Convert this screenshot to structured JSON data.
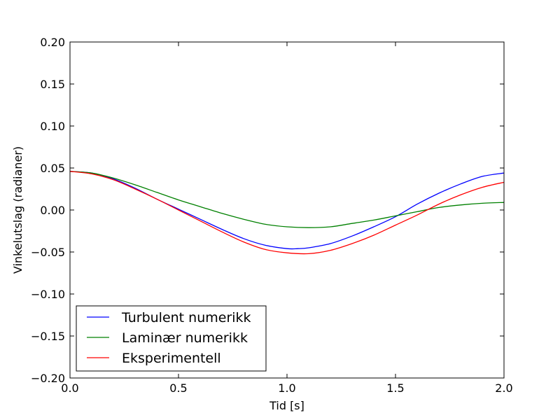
{
  "chart_data": {
    "type": "line",
    "title": "",
    "xlabel": "Tid [s]",
    "ylabel": "Vinkelutslag (radianer)",
    "xlim": [
      0.0,
      2.0
    ],
    "ylim": [
      -0.2,
      0.2
    ],
    "xticks": [
      0.0,
      0.5,
      1.0,
      1.5,
      2.0
    ],
    "xtick_labels": [
      "0.0",
      "0.5",
      "1.0",
      "1.5",
      "2.0"
    ],
    "yticks": [
      0.2,
      0.15,
      0.1,
      0.05,
      0.0,
      -0.05,
      -0.1,
      -0.15,
      -0.2
    ],
    "ytick_labels": [
      "0.20",
      "0.15",
      "0.10",
      "0.05",
      "0.00",
      "−0.05",
      "−0.10",
      "−0.15",
      "−0.20"
    ],
    "grid": false,
    "legend_position": "lower-left",
    "series": [
      {
        "name": "Turbulent numerikk",
        "color": "#0000ff",
        "x": [
          0.0,
          0.1,
          0.2,
          0.3,
          0.4,
          0.5,
          0.6,
          0.7,
          0.8,
          0.9,
          1.0,
          1.05,
          1.1,
          1.2,
          1.3,
          1.4,
          1.5,
          1.6,
          1.7,
          1.8,
          1.9,
          2.0
        ],
        "y": [
          0.046,
          0.044,
          0.037,
          0.026,
          0.013,
          0.001,
          -0.011,
          -0.023,
          -0.034,
          -0.042,
          -0.046,
          -0.046,
          -0.045,
          -0.04,
          -0.031,
          -0.02,
          -0.008,
          0.007,
          0.02,
          0.031,
          0.04,
          0.044
        ]
      },
      {
        "name": "Laminær numerikk",
        "color": "#008000",
        "x": [
          0.0,
          0.1,
          0.2,
          0.3,
          0.4,
          0.5,
          0.6,
          0.7,
          0.8,
          0.9,
          1.0,
          1.1,
          1.2,
          1.3,
          1.4,
          1.5,
          1.6,
          1.7,
          1.8,
          1.9,
          2.0
        ],
        "y": [
          0.046,
          0.044,
          0.038,
          0.03,
          0.021,
          0.012,
          0.004,
          -0.004,
          -0.011,
          -0.017,
          -0.02,
          -0.021,
          -0.02,
          -0.016,
          -0.012,
          -0.007,
          -0.002,
          0.003,
          0.006,
          0.008,
          0.009
        ]
      },
      {
        "name": "Eksperimentell",
        "color": "#ff0000",
        "x": [
          0.0,
          0.1,
          0.2,
          0.3,
          0.4,
          0.5,
          0.6,
          0.7,
          0.8,
          0.9,
          1.0,
          1.1,
          1.2,
          1.3,
          1.4,
          1.5,
          1.6,
          1.7,
          1.8,
          1.9,
          2.0
        ],
        "y": [
          0.046,
          0.043,
          0.036,
          0.025,
          0.013,
          0.0,
          -0.013,
          -0.026,
          -0.038,
          -0.047,
          -0.051,
          -0.052,
          -0.048,
          -0.04,
          -0.03,
          -0.018,
          -0.006,
          0.007,
          0.018,
          0.027,
          0.033
        ]
      }
    ]
  }
}
